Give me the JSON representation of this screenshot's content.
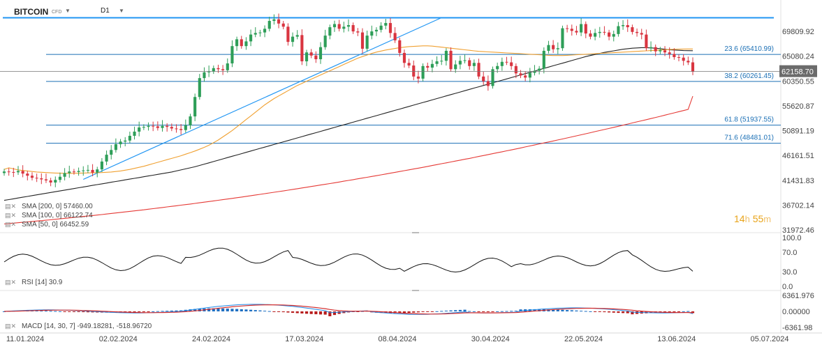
{
  "header": {
    "symbol": "BITCOIN",
    "instrument_type": "CFD",
    "timeframe": "D1"
  },
  "legend": {
    "sma200": "SMA [200, 0] 57460.00",
    "sma100": "SMA [100, 0] 66122.74",
    "sma50": "SMA [50, 0] 66452.59",
    "rsi": "RSI [14] 30.9",
    "macd": "MACD [14, 30, 7] -949.18281, -518.96720"
  },
  "timer": {
    "hours": "14",
    "h_unit": "h",
    "minutes": "55",
    "m_unit": "m"
  },
  "colors": {
    "up": "#2e9e58",
    "down": "#d93540",
    "sma200": "#e53935",
    "sma100": "#222222",
    "sma50": "#f0a030",
    "fib": "#1a6fb5",
    "trend": "#2196f3",
    "price_tag": "#6b6b6b",
    "macd_signal": "#d32f2f",
    "macd_line": "#1e88e5"
  },
  "chart_data": [
    {
      "type": "candlestick",
      "title": "BITCOIN D1",
      "x_ticks": [
        "11.01.2024",
        "02.02.2024",
        "24.02.2024",
        "17.03.2024",
        "08.04.2024",
        "30.04.2024",
        "22.05.2024",
        "13.06.2024",
        "05.07.2024"
      ],
      "y_ticks": [
        "69809.92",
        "65080.24",
        "60350.55",
        "55620.87",
        "50891.19",
        "46161.51",
        "41431.83",
        "36702.14",
        "31972.46"
      ],
      "ylim": [
        31972.46,
        72600
      ],
      "last_price": "62158.70",
      "fib_levels": [
        {
          "label": "23.6 (65410.99)",
          "value": 65410.99
        },
        {
          "label": "38.2 (60261.45)",
          "value": 60261.45
        },
        {
          "label": "61.8 (51937.55)",
          "value": 51937.55
        },
        {
          "label": "71.6 (48481.01)",
          "value": 48481.01
        }
      ],
      "resistance": 72400,
      "closes": [
        43100,
        43000,
        42950,
        43200,
        42700,
        42300,
        41900,
        41800,
        41600,
        41400,
        41000,
        41500,
        42100,
        42800,
        43100,
        43000,
        43200,
        43300,
        43400,
        42900,
        43500,
        45000,
        46300,
        47200,
        48300,
        48800,
        49000,
        49900,
        50700,
        51500,
        51600,
        51800,
        51700,
        51400,
        51800,
        51600,
        51300,
        51200,
        51000,
        51900,
        53600,
        57300,
        60900,
        62000,
        62200,
        62800,
        62600,
        62400,
        63700,
        67000,
        68300,
        67000,
        67900,
        69200,
        69500,
        69600,
        70300,
        71800,
        72100,
        71300,
        70700,
        67800,
        68800,
        69100,
        64100,
        65800,
        65200,
        64500,
        66800,
        69000,
        70600,
        71200,
        70300,
        70700,
        71000,
        69800,
        69600,
        66500,
        69000,
        69800,
        70100,
        70900,
        71400,
        69500,
        68100,
        65700,
        63800,
        63300,
        61200,
        60800,
        63200,
        62900,
        63600,
        64100,
        64200,
        66100,
        62600,
        63500,
        64200,
        64300,
        63200,
        63800,
        61200,
        60300,
        59400,
        62600,
        63200,
        64000,
        63900,
        63200,
        61800,
        61400,
        61000,
        61900,
        62300,
        62700,
        66100,
        67200,
        66400,
        66600,
        70400,
        70300,
        69900,
        69600,
        71200,
        69400,
        68800,
        69500,
        69700,
        69600,
        68800,
        69300,
        70800,
        71000,
        70600,
        69700,
        69500,
        69200,
        66600,
        66800,
        66000,
        66200,
        65800,
        65500,
        64900,
        64800,
        64200,
        63900,
        62158.7
      ],
      "sma50": [
        43500,
        43800,
        43600,
        43400,
        43300,
        43200,
        43100,
        43000,
        42950,
        42900,
        42850,
        42800,
        42780,
        42760,
        42750,
        42760,
        42780,
        42800,
        42830,
        42850,
        42870,
        42900,
        42950,
        43000,
        43100,
        43200,
        43350,
        43500,
        43700,
        43900,
        44100,
        44350,
        44600,
        44850,
        45100,
        45350,
        45600,
        45850,
        46100,
        46400,
        46700,
        47000,
        47350,
        47700,
        48100,
        48600,
        49100,
        49700,
        50300,
        50900,
        51600,
        52300,
        53000,
        53700,
        54400,
        55100,
        55800,
        56400,
        57000,
        57500,
        58000,
        58500,
        59000,
        59500,
        59900,
        60300,
        60700,
        61100,
        61500,
        61900,
        62300,
        62700,
        63100,
        63500,
        63900,
        64300,
        64700,
        65000,
        65300,
        65600,
        65850,
        66050,
        66250,
        66400,
        66550,
        66700,
        66800,
        66900,
        66950,
        67000,
        67050,
        67050,
        67000,
        66900,
        66800,
        66700,
        66600,
        66500,
        66400,
        66300,
        66200,
        66100,
        66000,
        65950,
        65900,
        65850,
        65800,
        65750,
        65700,
        65650,
        65600,
        65550,
        65500,
        65450,
        65400,
        65350,
        65300,
        65250,
        65200,
        65200,
        65200,
        65250,
        65300,
        65350,
        65400,
        65450,
        65500,
        65550,
        65600,
        65650,
        65700,
        65750,
        65800,
        65850,
        65900,
        65950,
        66000,
        66050,
        66100,
        66150,
        66200,
        66250,
        66300,
        66350,
        66400,
        66420,
        66440,
        66450,
        66452.59
      ],
      "sma100": [
        37600,
        37750,
        37900,
        38050,
        38200,
        38350,
        38500,
        38650,
        38800,
        38950,
        39100,
        39250,
        39400,
        39550,
        39700,
        39850,
        40000,
        40150,
        40300,
        40450,
        40600,
        40750,
        40900,
        41050,
        41200,
        41350,
        41500,
        41650,
        41800,
        41950,
        42100,
        42250,
        42400,
        42550,
        42700,
        42850,
        43000,
        43200,
        43400,
        43600,
        43800,
        44000,
        44250,
        44500,
        44750,
        45000,
        45250,
        45500,
        45750,
        46000,
        46250,
        46500,
        46750,
        47000,
        47250,
        47500,
        47750,
        48000,
        48250,
        48500,
        48750,
        49000,
        49250,
        49500,
        49750,
        50000,
        50250,
        50500,
        50750,
        51000,
        51250,
        51500,
        51750,
        52000,
        52250,
        52500,
        52750,
        53000,
        53250,
        53500,
        53750,
        54000,
        54250,
        54500,
        54750,
        55000,
        55250,
        55500,
        55750,
        56000,
        56250,
        56500,
        56750,
        57000,
        57250,
        57500,
        57750,
        58000,
        58250,
        58500,
        58750,
        59000,
        59250,
        59500,
        59750,
        60000,
        60250,
        60500,
        60750,
        61000,
        61250,
        61500,
        61750,
        62000,
        62250,
        62500,
        62750,
        63000,
        63250,
        63500,
        63750,
        64000,
        64250,
        64500,
        64750,
        65000,
        65200,
        65400,
        65600,
        65800,
        65950,
        66100,
        66250,
        66400,
        66500,
        66600,
        66650,
        66700,
        66700,
        66650,
        66600,
        66500,
        66400,
        66300,
        66250,
        66200,
        66150,
        66130,
        66122.74
      ],
      "sma200": [
        33100,
        33180,
        33260,
        33340,
        33420,
        33500,
        33580,
        33660,
        33740,
        33820,
        33900,
        33990,
        34080,
        34170,
        34260,
        34350,
        34440,
        34530,
        34620,
        34710,
        34800,
        34900,
        35000,
        35100,
        35200,
        35300,
        35400,
        35500,
        35600,
        35700,
        35800,
        35910,
        36020,
        36130,
        36240,
        36350,
        36460,
        36570,
        36680,
        36790,
        36900,
        37020,
        37140,
        37260,
        37380,
        37500,
        37620,
        37740,
        37860,
        37980,
        38100,
        38230,
        38360,
        38490,
        38620,
        38750,
        38880,
        39010,
        39140,
        39270,
        39400,
        39540,
        39680,
        39820,
        39960,
        40100,
        40240,
        40380,
        40520,
        40660,
        40800,
        40950,
        41100,
        41250,
        41400,
        41550,
        41700,
        41850,
        42000,
        42150,
        42300,
        42460,
        42620,
        42780,
        42940,
        43100,
        43260,
        43420,
        43580,
        43740,
        43900,
        44070,
        44240,
        44410,
        44580,
        44750,
        44920,
        45090,
        45260,
        45430,
        45600,
        45780,
        45960,
        46140,
        46320,
        46500,
        46680,
        46860,
        47040,
        47220,
        47400,
        47590,
        47780,
        47970,
        48160,
        48350,
        48540,
        48730,
        48920,
        49110,
        49300,
        49500,
        49700,
        49900,
        50100,
        50300,
        50500,
        50700,
        50900,
        51100,
        51300,
        51510,
        51720,
        51930,
        52140,
        52350,
        52560,
        52770,
        52980,
        53190,
        53400,
        53620,
        53840,
        54060,
        54280,
        54500,
        54720,
        54940,
        57460.0
      ]
    },
    {
      "type": "line",
      "name": "RSI",
      "y_ticks": [
        "100.0",
        "70.0",
        "30.0",
        "0.0"
      ],
      "ylim": [
        0,
        100
      ],
      "last": 30.9
    },
    {
      "type": "bar",
      "name": "MACD",
      "y_ticks": [
        "6361.976",
        "0.00000",
        "-6361.98"
      ],
      "ylim": [
        -6361.98,
        6361.976
      ],
      "macd": -949.18281,
      "signal": -518.9672
    }
  ]
}
